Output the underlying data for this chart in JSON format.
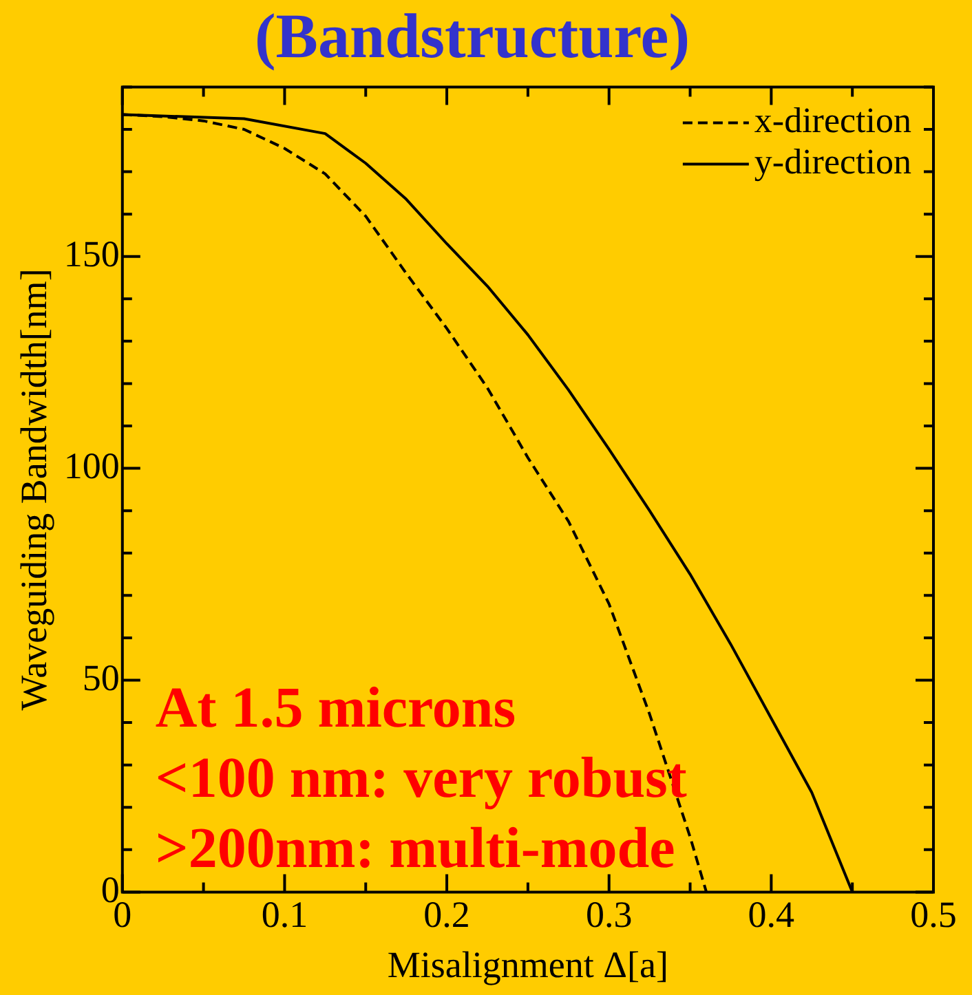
{
  "chart_data": {
    "type": "line",
    "title": "(Bandstructure)",
    "xlabel": "Misalignment Δ[a]",
    "ylabel": "Waveguiding Bandwidth[nm]",
    "xlim": [
      0,
      0.5
    ],
    "ylim": [
      0,
      190
    ],
    "xticks": [
      0,
      {
        "value": 0.05,
        "label": null
      },
      0.1,
      {
        "value": 0.15,
        "label": null
      },
      0.2,
      {
        "value": 0.25,
        "label": null
      },
      0.3,
      {
        "value": 0.35,
        "label": null
      },
      0.4,
      {
        "value": 0.45,
        "label": null
      },
      0.5
    ],
    "yticks": [
      0,
      {
        "value": 10,
        "label": null
      },
      {
        "value": 20,
        "label": null
      },
      {
        "value": 30,
        "label": null
      },
      {
        "value": 40,
        "label": null
      },
      50,
      {
        "value": 60,
        "label": null
      },
      {
        "value": 70,
        "label": null
      },
      {
        "value": 80,
        "label": null
      },
      {
        "value": 90,
        "label": null
      },
      100,
      {
        "value": 110,
        "label": null
      },
      {
        "value": 120,
        "label": null
      },
      {
        "value": 130,
        "label": null
      },
      {
        "value": 140,
        "label": null
      },
      150,
      {
        "value": 160,
        "label": null
      },
      {
        "value": 170,
        "label": null
      },
      {
        "value": 180,
        "label": null
      },
      {
        "value": 190,
        "label": null
      }
    ],
    "legend": "top right",
    "grid": false,
    "marker": "none",
    "series": [
      {
        "name": "x-direction",
        "color": "#000000",
        "line_style": "dashed",
        "x": [
          0,
          0.025,
          0.05,
          0.075,
          0.1,
          0.125,
          0.15,
          0.175,
          0.2,
          0.225,
          0.25,
          0.275,
          0.3,
          0.325,
          0.35,
          0.36
        ],
        "values": [
          183.5,
          183,
          182,
          180,
          175.5,
          169.5,
          159.5,
          146,
          133,
          119,
          102.5,
          87.5,
          68,
          42,
          13,
          0
        ]
      },
      {
        "name": "y-direction",
        "color": "#000000",
        "line_style": "solid",
        "x": [
          0,
          0.075,
          0.125,
          0.15,
          0.175,
          0.2,
          0.225,
          0.25,
          0.275,
          0.3,
          0.325,
          0.35,
          0.375,
          0.4,
          0.425,
          0.45
        ],
        "values": [
          183.5,
          182.5,
          179,
          172,
          163.5,
          153,
          143,
          131.5,
          118.5,
          104.5,
          90,
          75,
          58.5,
          41,
          23.5,
          0
        ]
      }
    ],
    "annotations": [
      "At 1.5 microns",
      "<100 nm: very robust",
      ">200nm: multi-mode"
    ]
  }
}
